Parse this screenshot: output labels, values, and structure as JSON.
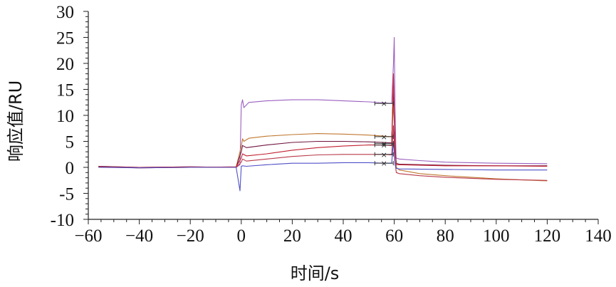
{
  "chart_data": {
    "type": "line",
    "xlabel": "时间/s",
    "ylabel": "响应值/RU",
    "xlim": [
      -60,
      140
    ],
    "ylim": [
      -10,
      30
    ],
    "x_ticks": [
      -60,
      -40,
      -20,
      0,
      20,
      40,
      60,
      80,
      100,
      120,
      140
    ],
    "x_tick_labels": [
      "−60",
      "−40",
      "−20",
      "0",
      "20",
      "40",
      "60",
      "80",
      "100",
      "120",
      "140"
    ],
    "y_ticks": [
      -10,
      -5,
      0,
      5,
      10,
      15,
      20,
      25,
      30
    ],
    "y_tick_labels": [
      "-10",
      "-5",
      "0",
      "5",
      "10",
      "15",
      "20",
      "25",
      "30"
    ],
    "grid": false,
    "series": [
      {
        "color": "#9b5fc0",
        "points": [
          [
            -56,
            0.2
          ],
          [
            -40,
            0.0
          ],
          [
            -20,
            0.1
          ],
          [
            -2,
            0.0
          ],
          [
            -0.5,
            0.5
          ],
          [
            0,
            12.0
          ],
          [
            0.5,
            13.0
          ],
          [
            1,
            11.5
          ],
          [
            3,
            12.5
          ],
          [
            10,
            12.8
          ],
          [
            20,
            13.0
          ],
          [
            30,
            13.0
          ],
          [
            40,
            12.8
          ],
          [
            50,
            12.6
          ],
          [
            56,
            12.4
          ],
          [
            59,
            12.3
          ],
          [
            59.7,
            20.0
          ],
          [
            60,
            25.0
          ],
          [
            60.3,
            12.0
          ],
          [
            60.7,
            1.8
          ],
          [
            62,
            1.6
          ],
          [
            70,
            1.3
          ],
          [
            80,
            1.0
          ],
          [
            100,
            0.8
          ],
          [
            120,
            0.7
          ]
        ]
      },
      {
        "color": "#c07830",
        "points": [
          [
            -56,
            0.1
          ],
          [
            -40,
            -0.1
          ],
          [
            -20,
            0.0
          ],
          [
            -2,
            0.1
          ],
          [
            0,
            4.0
          ],
          [
            0.5,
            5.5
          ],
          [
            1,
            5.0
          ],
          [
            3,
            5.6
          ],
          [
            10,
            6.0
          ],
          [
            20,
            6.3
          ],
          [
            30,
            6.5
          ],
          [
            40,
            6.4
          ],
          [
            50,
            6.2
          ],
          [
            56,
            6.0
          ],
          [
            59,
            5.9
          ],
          [
            59.7,
            12.0
          ],
          [
            60.3,
            5.0
          ],
          [
            60.8,
            0.0
          ],
          [
            62,
            -0.5
          ],
          [
            70,
            -1.2
          ],
          [
            80,
            -1.6
          ],
          [
            100,
            -2.2
          ],
          [
            120,
            -2.6
          ]
        ]
      },
      {
        "color": "#701540",
        "points": [
          [
            -56,
            0.2
          ],
          [
            -40,
            0.0
          ],
          [
            -20,
            0.1
          ],
          [
            -2,
            0.0
          ],
          [
            0,
            3.0
          ],
          [
            0.5,
            4.2
          ],
          [
            2,
            3.8
          ],
          [
            10,
            4.3
          ],
          [
            20,
            4.8
          ],
          [
            30,
            5.0
          ],
          [
            40,
            5.0
          ],
          [
            50,
            4.9
          ],
          [
            56,
            4.8
          ],
          [
            59,
            4.7
          ],
          [
            59.7,
            16.0
          ],
          [
            60.3,
            4.0
          ],
          [
            60.8,
            0.8
          ],
          [
            62,
            0.6
          ],
          [
            80,
            0.4
          ],
          [
            100,
            0.3
          ],
          [
            120,
            0.3
          ]
        ]
      },
      {
        "color": "#c02030",
        "points": [
          [
            -56,
            0.1
          ],
          [
            -40,
            -0.1
          ],
          [
            -20,
            0.0
          ],
          [
            -2,
            0.1
          ],
          [
            0,
            1.8
          ],
          [
            0.5,
            2.6
          ],
          [
            2,
            2.2
          ],
          [
            10,
            2.6
          ],
          [
            20,
            3.3
          ],
          [
            30,
            3.8
          ],
          [
            40,
            4.1
          ],
          [
            50,
            4.3
          ],
          [
            56,
            4.3
          ],
          [
            59,
            4.2
          ],
          [
            59.7,
            18.0
          ],
          [
            60.3,
            3.5
          ],
          [
            60.8,
            0.5
          ],
          [
            62,
            0.5
          ],
          [
            80,
            0.3
          ],
          [
            100,
            0.3
          ],
          [
            120,
            0.2
          ]
        ]
      },
      {
        "color": "#b83848",
        "points": [
          [
            -56,
            0.1
          ],
          [
            -40,
            0.0
          ],
          [
            -20,
            0.1
          ],
          [
            -2,
            0.0
          ],
          [
            0,
            1.0
          ],
          [
            0.5,
            1.6
          ],
          [
            2,
            1.2
          ],
          [
            10,
            1.6
          ],
          [
            20,
            2.1
          ],
          [
            30,
            2.4
          ],
          [
            40,
            2.5
          ],
          [
            50,
            2.5
          ],
          [
            56,
            2.5
          ],
          [
            59,
            2.4
          ],
          [
            59.7,
            8.0
          ],
          [
            60.3,
            1.0
          ],
          [
            60.8,
            -1.0
          ],
          [
            62,
            -1.2
          ],
          [
            70,
            -1.6
          ],
          [
            80,
            -1.9
          ],
          [
            100,
            -2.3
          ],
          [
            120,
            -2.5
          ]
        ]
      },
      {
        "color": "#5050c8",
        "points": [
          [
            -56,
            0.0
          ],
          [
            -40,
            -0.1
          ],
          [
            -20,
            0.0
          ],
          [
            -2,
            0.0
          ],
          [
            -0.5,
            -4.5
          ],
          [
            0,
            0.2
          ],
          [
            0.5,
            0.3
          ],
          [
            2,
            0.2
          ],
          [
            10,
            0.5
          ],
          [
            20,
            0.8
          ],
          [
            30,
            0.8
          ],
          [
            40,
            0.9
          ],
          [
            50,
            0.9
          ],
          [
            56,
            0.8
          ],
          [
            59,
            0.8
          ],
          [
            59.7,
            5.0
          ],
          [
            60.3,
            0.5
          ],
          [
            60.8,
            -0.2
          ],
          [
            62,
            -0.3
          ],
          [
            80,
            -0.4
          ],
          [
            100,
            -0.5
          ],
          [
            120,
            -0.5
          ]
        ]
      }
    ],
    "markers": {
      "symbol": "×",
      "x_center": 56,
      "y_values": [
        12.3,
        5.9,
        4.6,
        4.3,
        2.5,
        0.8
      ]
    }
  }
}
